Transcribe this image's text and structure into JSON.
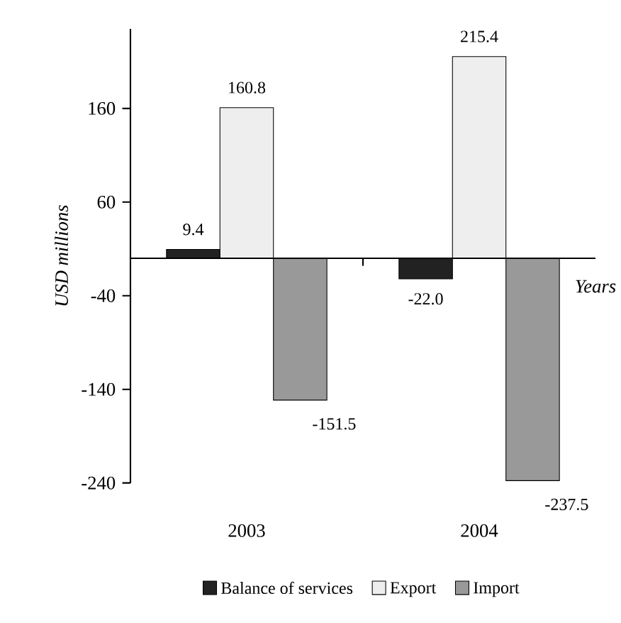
{
  "chart_data": {
    "type": "bar",
    "ylabel": "USD millions",
    "xlabel": "Years",
    "categories": [
      "2003",
      "2004"
    ],
    "series": [
      {
        "name": "Balance of services",
        "color": "#222222",
        "values": [
          9.4,
          -22.0
        ],
        "value_labels": [
          "9.4",
          "-22.0"
        ]
      },
      {
        "name": "Export",
        "color": "#eeeeee",
        "values": [
          160.8,
          215.4
        ],
        "value_labels": [
          "160.8",
          "215.4"
        ]
      },
      {
        "name": "Import",
        "color": "#999999",
        "values": [
          -151.5,
          -237.5
        ],
        "value_labels": [
          "-151.5",
          "-237.5"
        ]
      }
    ],
    "ylim": [
      -240,
      245
    ],
    "yticks": [
      -240,
      -140,
      -40,
      60,
      160
    ],
    "grid": false,
    "legend": "bottom"
  }
}
